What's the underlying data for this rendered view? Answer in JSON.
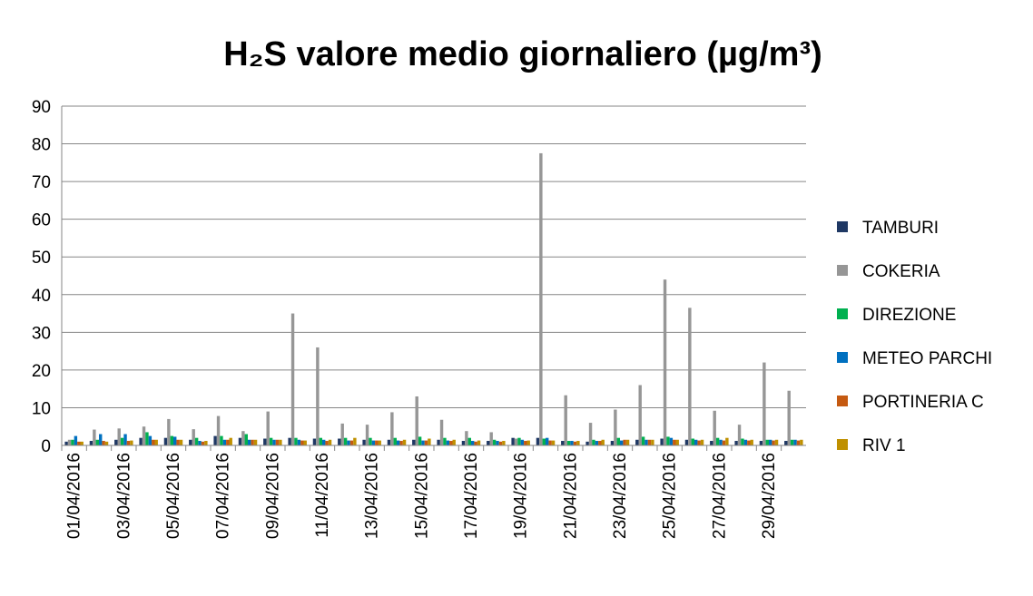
{
  "chart_data": {
    "type": "bar",
    "title": "H₂S valore medio giornaliero (µg/m³)",
    "categories": [
      "01/04/2016",
      null,
      "03/04/2016",
      null,
      "05/04/2016",
      null,
      "07/04/2016",
      null,
      "09/04/2016",
      null,
      "11/04/2016",
      null,
      "13/04/2016",
      null,
      "15/04/2016",
      null,
      "17/04/2016",
      null,
      "19/04/2016",
      null,
      "21/04/2016",
      null,
      "23/04/2016",
      null,
      "25/04/2016",
      null,
      "27/04/2016",
      null,
      "29/04/2016",
      null
    ],
    "series": [
      {
        "name": "TAMBURI",
        "color": "#1f3864",
        "values": [
          1,
          1.2,
          1.5,
          2,
          2,
          1.5,
          2.5,
          2,
          1.8,
          2,
          1.8,
          1.8,
          1.5,
          1.5,
          1.5,
          1.5,
          1.2,
          1.2,
          2,
          2,
          1.2,
          1,
          1.2,
          1.5,
          1.8,
          1.5,
          1.2,
          1.2,
          1.2,
          1.2
        ]
      },
      {
        "name": "COKERIA",
        "color": "#969696",
        "values": [
          1.5,
          4.2,
          4.5,
          5,
          7,
          4.3,
          7.8,
          3.8,
          9,
          35,
          26,
          5.8,
          5.5,
          8.8,
          13,
          6.8,
          3.8,
          3.5,
          1.8,
          77.5,
          13.3,
          6,
          9.5,
          16,
          44,
          36.5,
          9.2,
          5.5,
          22,
          14.5
        ]
      },
      {
        "name": "DIREZIONE",
        "color": "#00b050",
        "values": [
          1.5,
          1.5,
          2,
          3.5,
          2.5,
          2,
          2.5,
          3,
          2,
          2,
          2,
          2,
          2,
          2,
          2.3,
          2,
          2,
          1.5,
          2,
          1.8,
          1.2,
          1.5,
          2,
          2.3,
          2.3,
          1.8,
          2,
          1.8,
          1.5,
          1.5
        ]
      },
      {
        "name": "METEO PARCHI",
        "color": "#0070c0",
        "values": [
          2.5,
          3,
          3,
          2.5,
          2.3,
          1.2,
          1.5,
          1.5,
          1.5,
          1.5,
          1.5,
          1.3,
          1.3,
          1.3,
          1.3,
          1.3,
          1.2,
          1.2,
          1.5,
          2,
          1.2,
          1.2,
          1.3,
          1.5,
          2,
          1.5,
          1.5,
          1.5,
          1.5,
          1.5
        ]
      },
      {
        "name": "PORTINERIA C",
        "color": "#c55a11",
        "values": [
          1,
          1.2,
          1.2,
          1.5,
          1.5,
          1,
          1.5,
          1.5,
          1.5,
          1.3,
          1.2,
          1.3,
          1.3,
          1.2,
          1.3,
          1.2,
          1,
          1,
          1.2,
          1.3,
          1,
          1.2,
          1.5,
          1.5,
          1.5,
          1.3,
          1.3,
          1.3,
          1.3,
          1.3
        ]
      },
      {
        "name": "RIV 1",
        "color": "#bf9000",
        "values": [
          1,
          1,
          1.3,
          1.5,
          1.5,
          1.2,
          2,
          1.5,
          1.5,
          1.3,
          1.5,
          2,
          1.3,
          1.5,
          1.8,
          1.5,
          1.3,
          1.2,
          1.3,
          1.3,
          1.2,
          1.5,
          1.5,
          1.5,
          1.5,
          1.5,
          2,
          1.5,
          1.5,
          1.5
        ]
      }
    ],
    "ylim": [
      0,
      90
    ],
    "yticks": [
      0,
      10,
      20,
      30,
      40,
      50,
      60,
      70,
      80,
      90
    ],
    "grid": true
  }
}
